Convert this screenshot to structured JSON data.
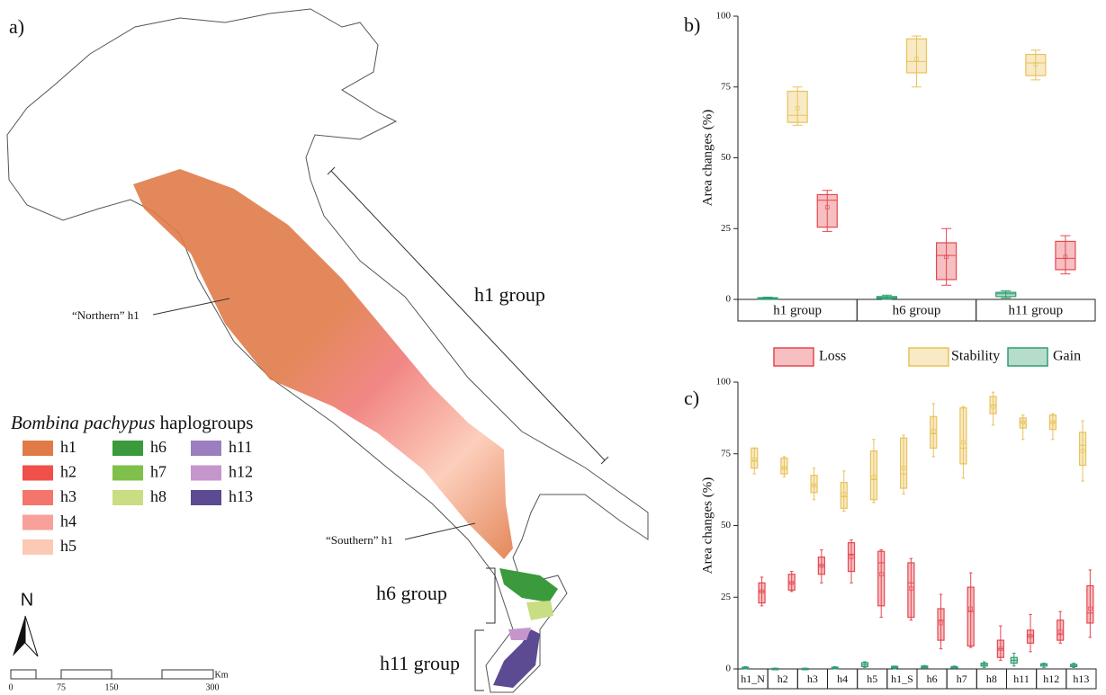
{
  "map": {
    "panel": "a)",
    "group_h1": "h1 group",
    "group_h6": "h6 group",
    "group_h11": "h11 group",
    "northern": "“Northern” h1",
    "southern": "“Southern” h1",
    "legend_title_italic": "Bombina pachypus",
    "legend_title": "haplogroups",
    "legend": [
      {
        "label": "h1",
        "color": "#e07b48"
      },
      {
        "label": "h2",
        "color": "#f0504a"
      },
      {
        "label": "h3",
        "color": "#f4756b"
      },
      {
        "label": "h4",
        "color": "#f8a09a"
      },
      {
        "label": "h5",
        "color": "#fcc9b4"
      },
      {
        "label": "h6",
        "color": "#3b9a3b"
      },
      {
        "label": "h7",
        "color": "#7ec04a"
      },
      {
        "label": "h8",
        "color": "#c9dd82"
      },
      {
        "label": "h11",
        "color": "#9b7ec0"
      },
      {
        "label": "h12",
        "color": "#c496cc"
      },
      {
        "label": "h13",
        "color": "#5c4a92"
      }
    ],
    "north": "N",
    "scale_labels": [
      "0",
      "75",
      "150",
      "300"
    ],
    "scale_unit": "Km"
  },
  "chart_data": [
    {
      "type": "box",
      "panel": "b)",
      "y_label": "Area changes (%)",
      "ylim": [
        0,
        100
      ],
      "yticks": [
        0,
        25,
        50,
        75,
        100
      ],
      "categories": [
        "h1 group",
        "h6 group",
        "h11 group"
      ],
      "series": [
        {
          "name": "Loss",
          "color": "#e5474f",
          "values": [
            {
              "min": 24,
              "q1": 25.5,
              "median": 35,
              "q3": 37,
              "max": 38.5,
              "mean": 32.5
            },
            {
              "min": 5,
              "q1": 7,
              "median": 15.5,
              "q3": 20,
              "max": 25,
              "mean": 15
            },
            {
              "min": 9,
              "q1": 10.5,
              "median": 14.5,
              "q3": 20.5,
              "max": 22.5,
              "mean": 15
            }
          ]
        },
        {
          "name": "Stability",
          "color": "#e9c25a",
          "values": [
            {
              "min": 61.5,
              "q1": 62.5,
              "median": 65,
              "q3": 73.5,
              "max": 75,
              "mean": 67.5
            },
            {
              "min": 75,
              "q1": 80,
              "median": 84,
              "q3": 92,
              "max": 93,
              "mean": 85
            },
            {
              "min": 77.5,
              "q1": 79,
              "median": 83.5,
              "q3": 86.5,
              "max": 88,
              "mean": 83
            }
          ]
        },
        {
          "name": "Gain",
          "color": "#2e9e6e",
          "values": [
            {
              "min": 0,
              "q1": 0,
              "median": 0.3,
              "q3": 0.6,
              "max": 0.8
            },
            {
              "min": 0,
              "q1": 0.3,
              "median": 0.7,
              "q3": 1,
              "max": 1.5
            },
            {
              "min": 0.5,
              "q1": 1,
              "median": 2,
              "q3": 2.5,
              "max": 3
            }
          ]
        }
      ]
    },
    {
      "type": "box",
      "panel": "c)",
      "y_label": "Area changes (%)",
      "ylim": [
        0,
        100
      ],
      "yticks": [
        0,
        25,
        50,
        75,
        100
      ],
      "categories": [
        "h1_N",
        "h2",
        "h3",
        "h4",
        "h5",
        "h1_S",
        "h6",
        "h7",
        "h8",
        "h11",
        "h12",
        "h13"
      ],
      "series": [
        {
          "color": "#e5474f",
          "values": [
            {
              "min": 22,
              "q1": 23,
              "median": 27,
              "q3": 30,
              "max": 32,
              "mean": 27
            },
            {
              "min": 27,
              "q1": 27.5,
              "median": 30,
              "q3": 33,
              "max": 34,
              "mean": 30
            },
            {
              "min": 30,
              "q1": 33,
              "median": 36,
              "q3": 39,
              "max": 41.5,
              "mean": 36
            },
            {
              "min": 30,
              "q1": 34,
              "median": 40,
              "q3": 44,
              "max": 45,
              "mean": 39
            },
            {
              "min": 18,
              "q1": 22,
              "median": 37,
              "q3": 41,
              "max": 41.5,
              "mean": 33
            },
            {
              "min": 17,
              "q1": 18,
              "median": 30,
              "q3": 37,
              "max": 38.5,
              "mean": 28
            },
            {
              "min": 7,
              "q1": 10,
              "median": 17,
              "q3": 21,
              "max": 26,
              "mean": 16
            },
            {
              "min": 7.5,
              "q1": 8,
              "median": 20,
              "q3": 28.5,
              "max": 33.5,
              "mean": 21
            },
            {
              "min": 3,
              "q1": 4,
              "median": 7,
              "q3": 10,
              "max": 15,
              "mean": 7
            },
            {
              "min": 6,
              "q1": 9,
              "median": 11.5,
              "q3": 13.5,
              "max": 19,
              "mean": 11.5
            },
            {
              "min": 9,
              "q1": 10,
              "median": 12,
              "q3": 17,
              "max": 20,
              "mean": 13
            },
            {
              "min": 11,
              "q1": 16,
              "median": 19.5,
              "q3": 29,
              "max": 34.5,
              "mean": 21
            }
          ]
        },
        {
          "color": "#e9c25a",
          "values": [
            {
              "min": 68,
              "q1": 70,
              "median": 72.5,
              "q3": 77,
              "max": 77,
              "mean": 73
            },
            {
              "min": 67,
              "q1": 68,
              "median": 70,
              "q3": 73.5,
              "max": 74,
              "mean": 70
            },
            {
              "min": 59,
              "q1": 61.5,
              "median": 64,
              "q3": 67.5,
              "max": 70,
              "mean": 64
            },
            {
              "min": 55,
              "q1": 56,
              "median": 60,
              "q3": 65,
              "max": 69,
              "mean": 61
            },
            {
              "min": 58,
              "q1": 59,
              "median": 66,
              "q3": 76,
              "max": 80,
              "mean": 67
            },
            {
              "min": 61,
              "q1": 63,
              "median": 68,
              "q3": 80.5,
              "max": 81.5,
              "mean": 70
            },
            {
              "min": 74,
              "q1": 77,
              "median": 82,
              "q3": 88,
              "max": 92.5,
              "mean": 83
            },
            {
              "min": 66.5,
              "q1": 71.5,
              "median": 77,
              "q3": 91,
              "max": 91.5,
              "mean": 79
            },
            {
              "min": 85,
              "q1": 89,
              "median": 92,
              "q3": 95,
              "max": 96.5,
              "mean": 91.5
            },
            {
              "min": 80,
              "q1": 84,
              "median": 86,
              "q3": 87.5,
              "max": 88.5,
              "mean": 86
            },
            {
              "min": 80,
              "q1": 83.5,
              "median": 86,
              "q3": 88.5,
              "max": 89,
              "mean": 86
            },
            {
              "min": 65.5,
              "q1": 71,
              "median": 78,
              "q3": 82.5,
              "max": 86.5,
              "mean": 76
            }
          ]
        },
        {
          "color": "#2e9e6e",
          "values": [
            {
              "min": 0,
              "q1": 0.2,
              "median": 0.4,
              "q3": 0.6,
              "max": 0.8
            },
            {
              "min": 0,
              "q1": 0,
              "median": 0.1,
              "q3": 0.2,
              "max": 0.3
            },
            {
              "min": 0,
              "q1": 0,
              "median": 0.1,
              "q3": 0.2,
              "max": 0.3
            },
            {
              "min": 0,
              "q1": 0.2,
              "median": 0.4,
              "q3": 0.6,
              "max": 0.8
            },
            {
              "min": 0.5,
              "q1": 0.8,
              "median": 1.5,
              "q3": 2.2,
              "max": 2.5
            },
            {
              "min": 0,
              "q1": 0.3,
              "median": 0.6,
              "q3": 0.9,
              "max": 1
            },
            {
              "min": 0.2,
              "q1": 0.4,
              "median": 0.7,
              "q3": 1,
              "max": 1.2
            },
            {
              "min": 0.2,
              "q1": 0.4,
              "median": 0.6,
              "q3": 0.8,
              "max": 1
            },
            {
              "min": 0.5,
              "q1": 1,
              "median": 1.5,
              "q3": 2,
              "max": 2.5
            },
            {
              "min": 1,
              "q1": 2,
              "median": 3,
              "q3": 4,
              "max": 5.5
            },
            {
              "min": 0.5,
              "q1": 1,
              "median": 1.5,
              "q3": 1.8,
              "max": 2
            },
            {
              "min": 0.5,
              "q1": 0.8,
              "median": 1.2,
              "q3": 1.6,
              "max": 2
            }
          ]
        }
      ]
    }
  ]
}
